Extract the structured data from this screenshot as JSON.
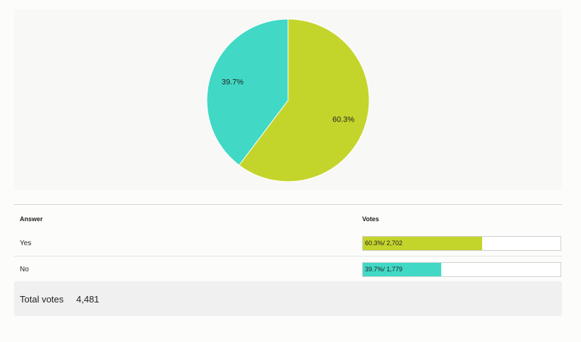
{
  "chart_data": {
    "type": "pie",
    "categories": [
      "Yes",
      "No"
    ],
    "values": [
      60.3,
      39.7
    ],
    "colors": [
      "#c3d52b",
      "#41d9c6"
    ],
    "slice_labels": [
      "60.3%",
      "39.7%"
    ],
    "title": "",
    "legend": "none"
  },
  "results": {
    "header": {
      "answer": "Answer",
      "votes": "Votes"
    },
    "rows": [
      {
        "answer": "Yes",
        "percent": 60.3,
        "label": "60.3%/ 2,702",
        "color": "#c3d52b"
      },
      {
        "answer": "No",
        "percent": 39.7,
        "label": "39.7%/ 1,779",
        "color": "#41d9c6"
      }
    ]
  },
  "total": {
    "label": "Total votes",
    "value": "4,481"
  }
}
